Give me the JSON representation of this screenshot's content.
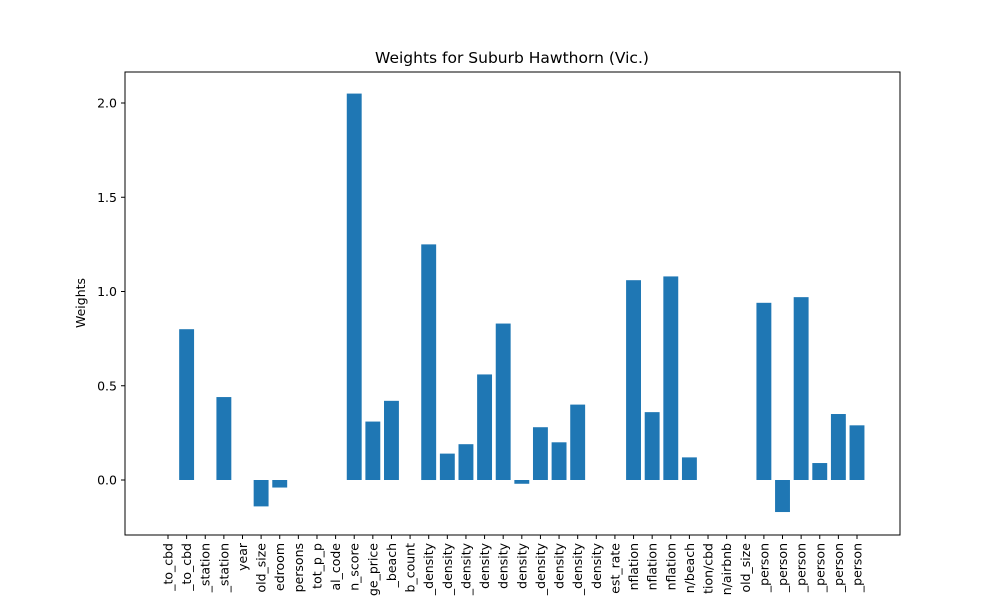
{
  "chart_data": {
    "type": "bar",
    "title": "Weights for Suburb Hawthorn (Vic.)",
    "xlabel": "",
    "ylabel": "Weights",
    "ylim": [
      -0.29,
      2.17
    ],
    "yticks": [
      "0.0",
      "0.5",
      "1.0",
      "1.5",
      "2.0"
    ],
    "bar_color": "#1f77b4",
    "grid": false,
    "categories": [
      "_to_cbd",
      "_to_cbd",
      "_station",
      "_station",
      "year",
      "old_size",
      "edroom",
      "persons",
      "tot_p_p",
      "al_code",
      "n_score",
      "ge_price",
      "_beach",
      "b_count",
      "_density",
      "_density",
      "_density",
      "density",
      "density",
      "density",
      "_density",
      "density",
      "_density",
      "density",
      "est_rate",
      "nflation",
      "nflation",
      "nflation",
      "n/beach",
      "tion/cbd",
      "n/airbnb",
      "old_size",
      "_person",
      "_person",
      "_person",
      "_person",
      "_person",
      "_person"
    ],
    "values": [
      0.0,
      0.8,
      0.0,
      0.44,
      0.0,
      -0.14,
      -0.04,
      0.0,
      0.0,
      0.0,
      2.05,
      0.31,
      0.42,
      0.0,
      1.25,
      0.14,
      0.19,
      0.56,
      0.83,
      -0.02,
      0.28,
      0.2,
      0.4,
      0.0,
      0.0,
      1.06,
      0.36,
      1.08,
      0.12,
      0.0,
      0.0,
      0.0,
      0.94,
      -0.17,
      0.97,
      0.09,
      0.35,
      0.29
    ]
  }
}
